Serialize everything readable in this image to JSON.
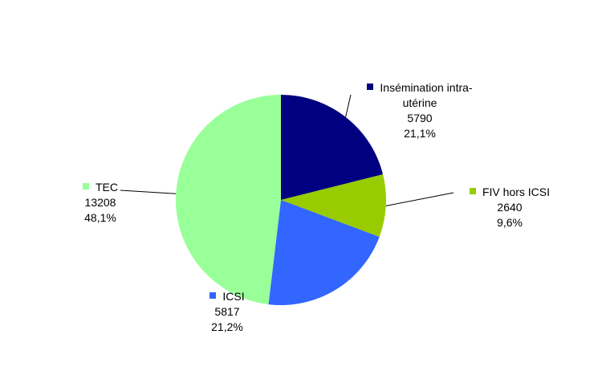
{
  "chart_data": {
    "type": "pie",
    "categories": [
      "Insémination intra-utérine",
      "FIV hors ICSI",
      "ICSI",
      "TEC"
    ],
    "values": [
      5790,
      2640,
      5817,
      13208
    ],
    "percent_labels": [
      "21,1%",
      "9,6%",
      "21,2%",
      "48,1%"
    ],
    "colors": [
      "#000080",
      "#99cc00",
      "#3366ff",
      "#99ff99"
    ]
  }
}
